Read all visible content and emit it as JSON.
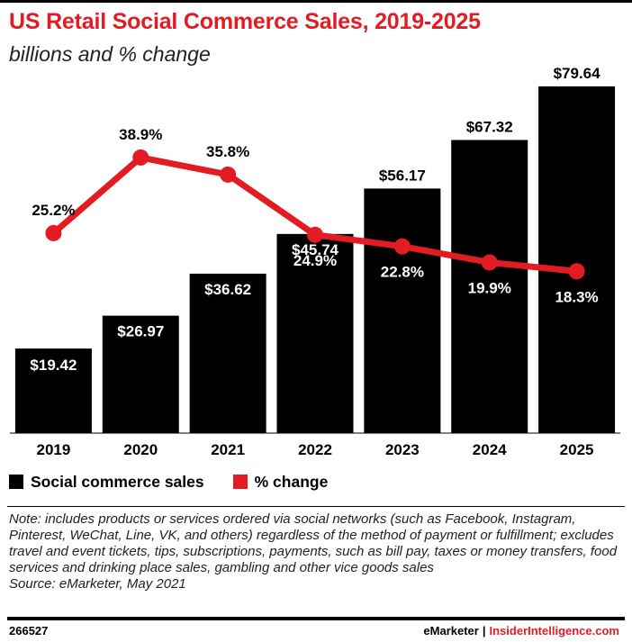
{
  "title": "US Retail Social Commerce Sales, 2019-2025",
  "subtitle": "billions and % change",
  "colors": {
    "bar": "#000000",
    "line": "#e31b23",
    "title": "#e31b23",
    "bar_label": "#ffffff"
  },
  "chart_data": {
    "type": "bar",
    "categories": [
      "2019",
      "2020",
      "2021",
      "2022",
      "2023",
      "2024",
      "2025"
    ],
    "series": [
      {
        "name": "Social commerce sales",
        "type": "bar",
        "values": [
          19.42,
          26.97,
          36.62,
          45.74,
          56.17,
          67.32,
          79.64
        ],
        "labels": [
          "$19.42",
          "$26.97",
          "$36.62",
          "$45.74",
          "$56.17",
          "$67.32",
          "$79.64"
        ]
      },
      {
        "name": "% change",
        "type": "line",
        "values": [
          25.2,
          38.9,
          35.8,
          24.9,
          22.8,
          19.9,
          18.3
        ],
        "labels": [
          "25.2%",
          "38.9%",
          "35.8%",
          "24.9%",
          "22.8%",
          "19.9%",
          "18.3%"
        ]
      }
    ],
    "ylim": [
      0,
      85
    ],
    "pct_ylim": [
      -11,
      56
    ],
    "grid": false,
    "legend_position": "bottom-left"
  },
  "legend": [
    {
      "label": "Social commerce sales"
    },
    {
      "label": "% change"
    }
  ],
  "note": "Note: includes products or services ordered via social networks (such as Facebook, Instagram, Pinterest, WeChat, Line, VK, and others) regardless of the method of payment or fulfillment; excludes travel and event tickets, tips, subscriptions, payments, such as bill pay, taxes or money transfers, food services and drinking place sales, gambling and other vice goods sales",
  "source": "Source: eMarketer, May 2021",
  "footer": {
    "id": "266527",
    "brand": "eMarketer",
    "separator": "|",
    "site": "InsiderIntelligence.com"
  }
}
